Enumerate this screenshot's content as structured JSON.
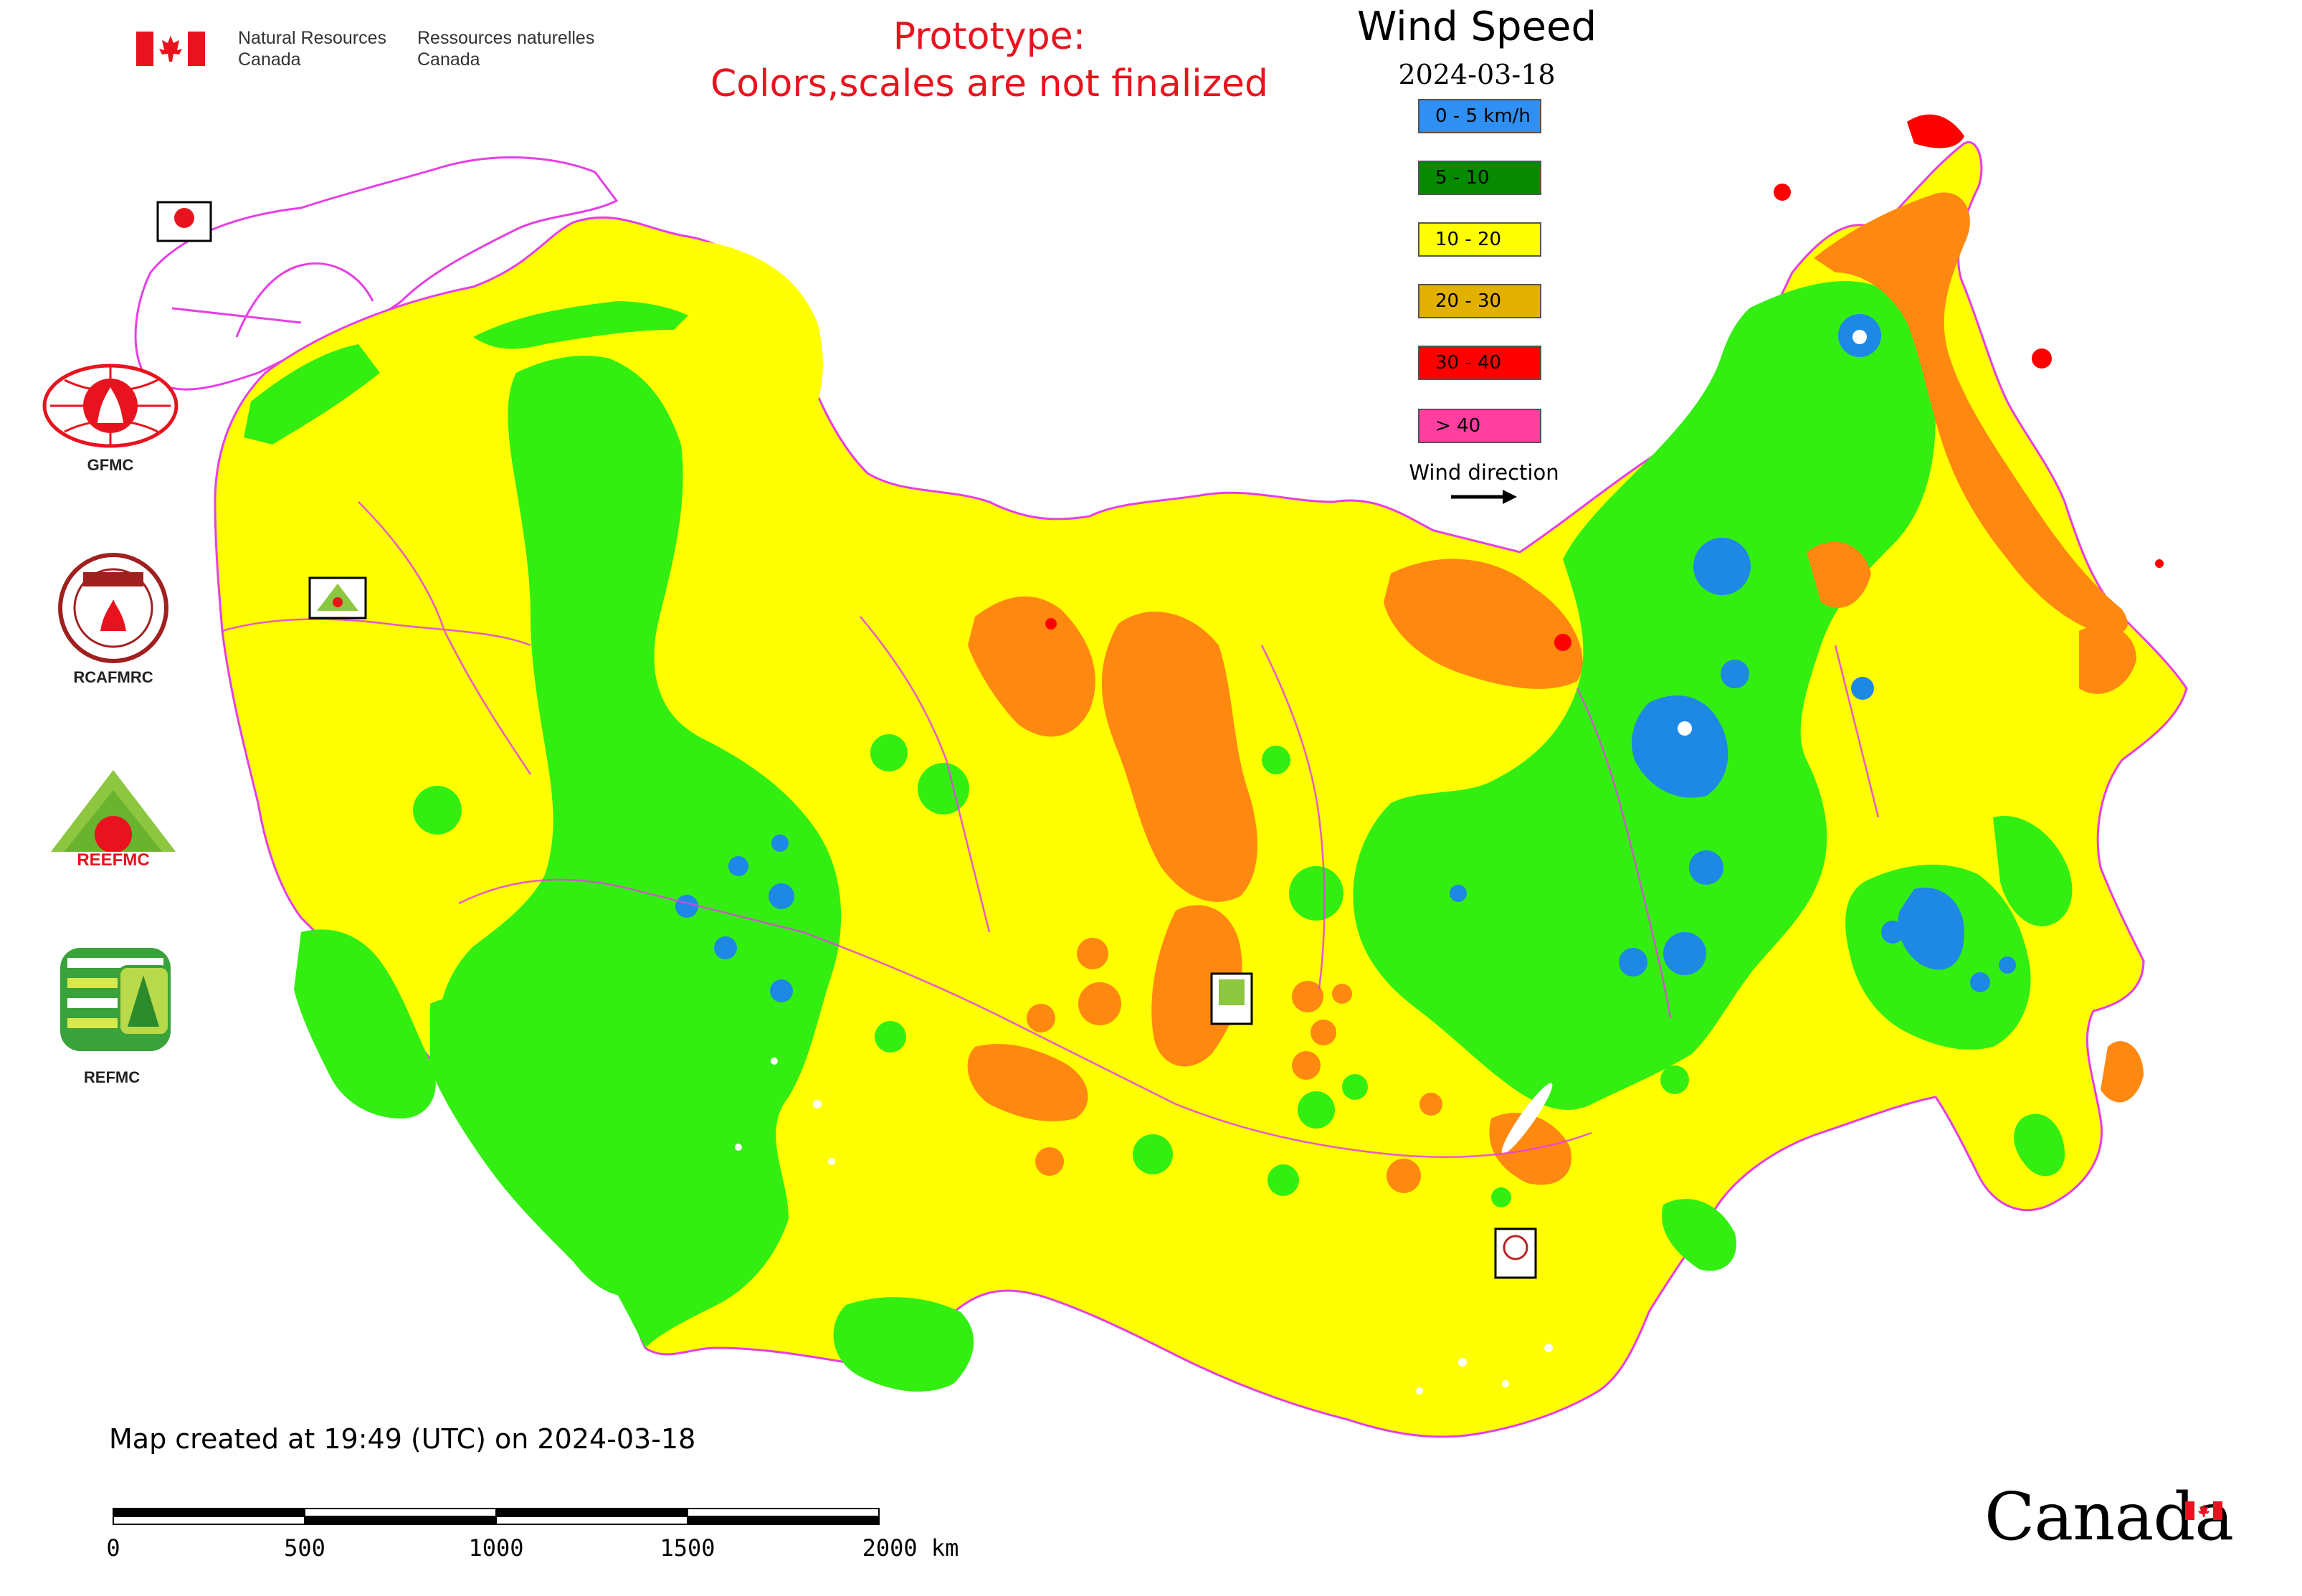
{
  "header": {
    "nrc_en": [
      "Natural Resources",
      "Canada"
    ],
    "nrc_fr": [
      "Ressources naturelles",
      "Canada"
    ],
    "prototype_lines": [
      "Prototype:",
      "Colors,scales are not finalized"
    ]
  },
  "legend": {
    "title": "Wind Speed",
    "date": "2024-03-18",
    "items": [
      {
        "label": "0 - 5 km/h",
        "color": "#2f8ff2"
      },
      {
        "label": "5 - 10",
        "color": "#078a00"
      },
      {
        "label": "10 - 20",
        "color": "#ffff00"
      },
      {
        "label": "20 - 30",
        "color": "#e2b100"
      },
      {
        "label": "30 - 40",
        "color": "#ff0000"
      },
      {
        "label": "> 40",
        "color": "#ff3ea0"
      }
    ],
    "wind_direction_label": "Wind direction"
  },
  "map_colors": {
    "yellow": "#ffff00",
    "green": "#33ee11",
    "blue": "#1e88e5",
    "orange": "#ff8811",
    "red": "#ff0000",
    "boundary": "#e63fe6"
  },
  "logos": [
    {
      "label": "GFMC",
      "icon": "gfmc-logo-icon"
    },
    {
      "label": "RCAFMRC",
      "icon": "rcafmrc-logo-icon"
    },
    {
      "label": "REEFMC",
      "icon": "reefmc-logo-icon"
    },
    {
      "label": "REFMC",
      "icon": "refmc-logo-icon"
    }
  ],
  "footer": {
    "created": "Map created at 19:49 (UTC) on 2024-03-18",
    "scale_ticks": [
      "0",
      "500",
      "1000",
      "1500",
      "2000 km"
    ],
    "canada_wordmark": "Canada"
  }
}
